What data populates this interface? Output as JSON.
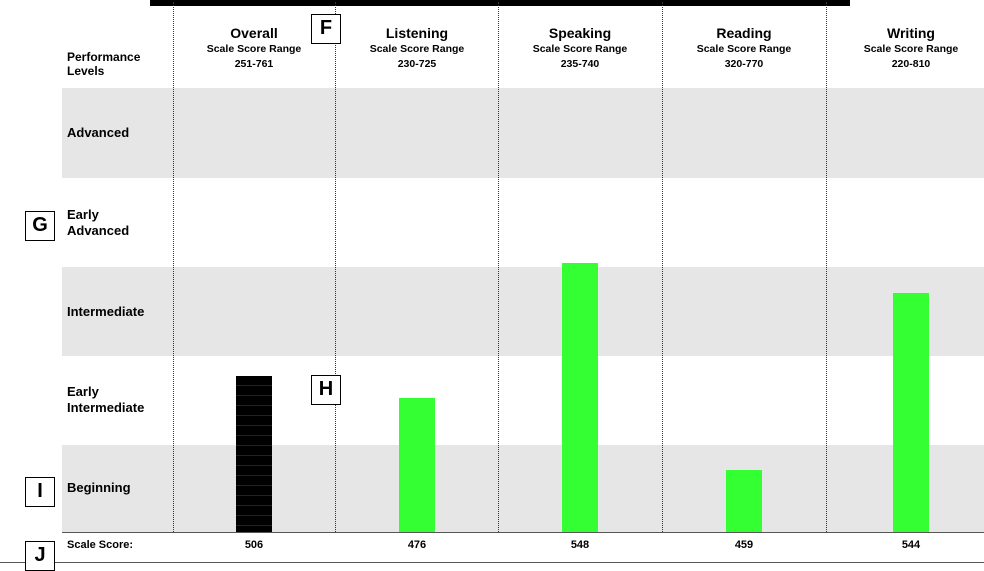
{
  "chart_data": {
    "type": "bar",
    "header_label": "Performance\nLevels",
    "range_subtitle": "Scale Score Range",
    "categories": [
      "Overall",
      "Listening",
      "Speaking",
      "Reading",
      "Writing"
    ],
    "ranges": [
      "251-761",
      "230-725",
      "235-740",
      "320-770",
      "220-810"
    ],
    "levels": [
      "Advanced",
      "Early\nAdvanced",
      "Intermediate",
      "Early\nIntermediate",
      "Beginning"
    ],
    "values": [
      506,
      476,
      548,
      459,
      544
    ],
    "bar_heights_fraction": [
      0.352,
      0.302,
      0.605,
      0.14,
      0.539
    ],
    "bar_colors": [
      "#000000",
      "#33ff33",
      "#33ff33",
      "#33ff33",
      "#33ff33"
    ],
    "score_label": "Scale Score:"
  },
  "markers": {
    "f": "F",
    "g": "G",
    "h": "H",
    "i": "I",
    "j": "J"
  }
}
